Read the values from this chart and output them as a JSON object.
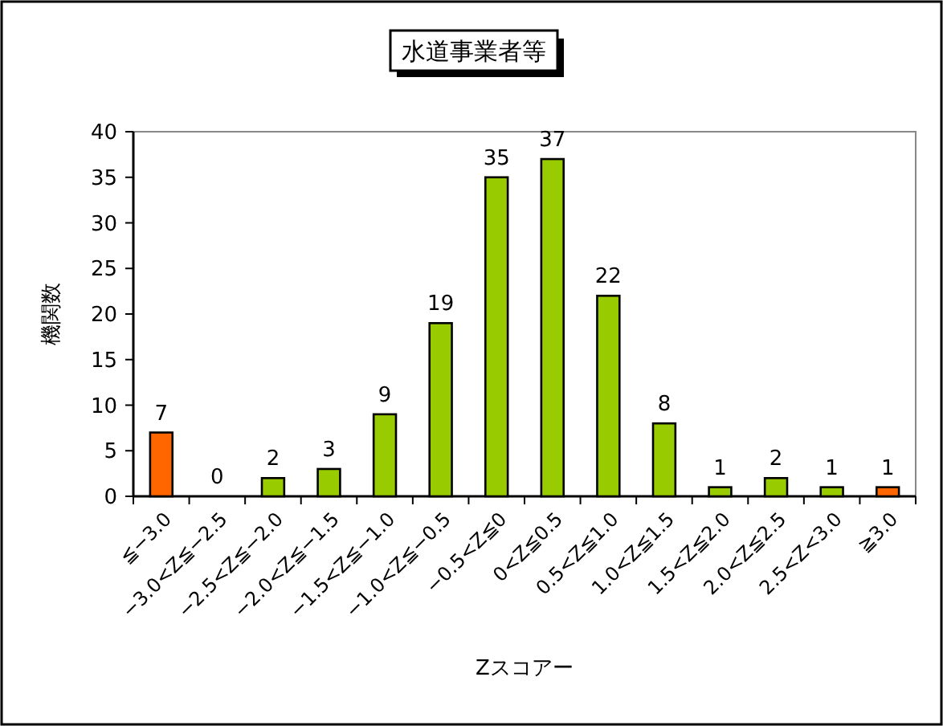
{
  "chart_data": {
    "type": "bar",
    "title": "水道事業者等",
    "xlabel": "Zスコアー",
    "ylabel": "機関数",
    "categories": [
      "≦−3.0",
      "−3.0<Z≦−2.5",
      "−2.5<Z≦−2.0",
      "−2.0<Z≦−1.5",
      "−1.5<Z≦−1.0",
      "−1.0<Z≦−0.5",
      "−0.5<Z≦0",
      "0<Z≦0.5",
      "0.5<Z≦1.0",
      "1.0<Z≦1.5",
      "1.5<Z≦2.0",
      "2.0<Z≦2.5",
      "2.5<Z<3.0",
      "≧3.0"
    ],
    "values": [
      7,
      0,
      2,
      3,
      9,
      19,
      35,
      37,
      22,
      8,
      1,
      2,
      1,
      1
    ],
    "colors": [
      "#ff6600",
      "#99cc00",
      "#99cc00",
      "#99cc00",
      "#99cc00",
      "#99cc00",
      "#99cc00",
      "#99cc00",
      "#99cc00",
      "#99cc00",
      "#99cc00",
      "#99cc00",
      "#99cc00",
      "#ff6600"
    ],
    "ylim": [
      0,
      40
    ],
    "yticks": [
      0,
      5,
      10,
      15,
      20,
      25,
      30,
      35,
      40
    ],
    "grid": false,
    "data_labels": true
  }
}
